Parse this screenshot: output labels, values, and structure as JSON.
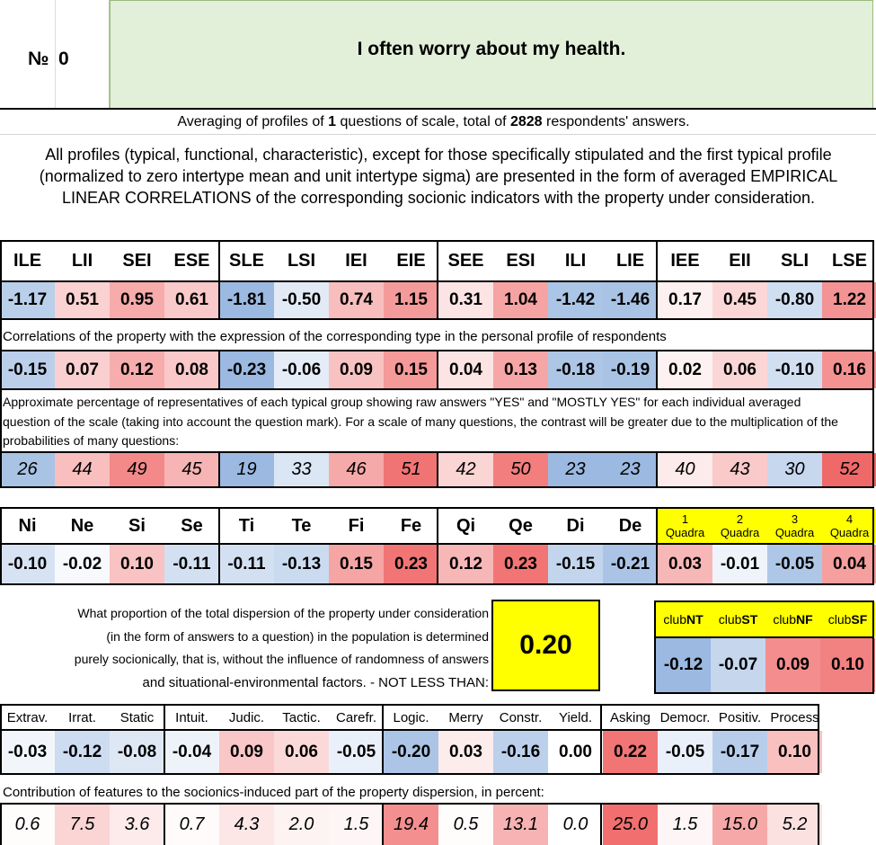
{
  "header": {
    "number_label": "№",
    "number_value": "0",
    "question": "I often worry about my health."
  },
  "summary": {
    "text_a": "Averaging of profiles of",
    "questions_count": "1",
    "text_b": "questions of scale, total of",
    "respondents": "2828",
    "text_c": "respondents' answers."
  },
  "description": "All profiles (typical, functional, characteristic), except for those specifically stipulated and the first typical profile (normalized to zero intertype mean and unit intertype sigma) are presented in the form of averaged EMPIRICAL LINEAR CORRELATIONS of the corresponding socionic indicators with the property under consideration.",
  "types": {
    "labels": [
      "ILE",
      "LII",
      "SEI",
      "ESE",
      "SLE",
      "LSI",
      "IEI",
      "EIE",
      "SEE",
      "ESI",
      "ILI",
      "LIE",
      "IEE",
      "EII",
      "SLI",
      "LSE"
    ],
    "normalized": [
      "-1.17",
      "0.51",
      "0.95",
      "0.61",
      "-1.81",
      "-0.50",
      "0.74",
      "1.15",
      "0.31",
      "1.04",
      "-1.42",
      "-1.46",
      "0.17",
      "0.45",
      "-0.80",
      "1.22"
    ],
    "correlations_caption": "Correlations of the property with the expression of the corresponding type in the personal profile of respondents",
    "correlations": [
      "-0.15",
      "0.07",
      "0.12",
      "0.08",
      "-0.23",
      "-0.06",
      "0.09",
      "0.15",
      "0.04",
      "0.13",
      "-0.18",
      "-0.19",
      "0.02",
      "0.06",
      "-0.10",
      "0.16"
    ],
    "percent_caption": "Approximate percentage of representatives of each typical group showing raw answers \"YES\" and \"MOSTLY YES\" for each individual averaged question of the scale (taking into account the question mark). For a scale of many questions, the contrast will be greater due to the multiplication of the probabilities of many questions:",
    "percents": [
      "26",
      "44",
      "49",
      "45",
      "19",
      "33",
      "46",
      "51",
      "42",
      "50",
      "23",
      "23",
      "40",
      "43",
      "30",
      "52"
    ]
  },
  "functions": {
    "labels": [
      "Ni",
      "Ne",
      "Si",
      "Se",
      "Ti",
      "Te",
      "Fi",
      "Fe",
      "Qi",
      "Qe",
      "Di",
      "De"
    ],
    "values": [
      "-0.10",
      "-0.02",
      "0.10",
      "-0.11",
      "-0.11",
      "-0.13",
      "0.15",
      "0.23",
      "0.12",
      "0.23",
      "-0.15",
      "-0.21"
    ]
  },
  "quadras": {
    "labels": [
      {
        "num": "1",
        "word": "Quadra"
      },
      {
        "num": "2",
        "word": "Quadra"
      },
      {
        "num": "3",
        "word": "Quadra"
      },
      {
        "num": "4",
        "word": "Quadra"
      }
    ],
    "values": [
      "0.03",
      "-0.01",
      "-0.05",
      "0.04"
    ]
  },
  "dispersion": {
    "line1": "What proportion of the total dispersion of the property under consideration",
    "line2": "(in the form of answers to a question) in the population is determined",
    "line3": "purely socionically, that is, without the influence of randomness of answers",
    "line4": "and situational-environmental factors. - NOT LESS THAN:",
    "value": "0.20"
  },
  "clubs": {
    "labels": [
      {
        "pre": "club",
        "suf": "NT"
      },
      {
        "pre": "club",
        "suf": "ST"
      },
      {
        "pre": "club",
        "suf": "NF"
      },
      {
        "pre": "club",
        "suf": "SF"
      }
    ],
    "values": [
      "-0.12",
      "-0.07",
      "0.09",
      "0.10"
    ]
  },
  "features": {
    "labels": [
      "Extrav.",
      "Irrat.",
      "Static",
      "Intuit.",
      "Judic.",
      "Tactic.",
      "Carefr.",
      "Logic.",
      "Merry",
      "Constr.",
      "Yield.",
      "Asking",
      "Democr.",
      "Positiv.",
      "Process"
    ],
    "values": [
      "-0.03",
      "-0.12",
      "-0.08",
      "-0.04",
      "0.09",
      "0.06",
      "-0.05",
      "-0.20",
      "0.03",
      "-0.16",
      "0.00",
      "0.22",
      "-0.05",
      "-0.17",
      "0.10"
    ],
    "contribution_caption": "Contribution of features to the socionics-induced part of the property dispersion, in percent:",
    "contributions": [
      "0.6",
      "7.5",
      "3.6",
      "0.7",
      "4.3",
      "2.0",
      "1.5",
      "19.4",
      "0.5",
      "13.1",
      "0.0",
      "25.0",
      "1.5",
      "15.0",
      "5.2"
    ]
  },
  "colors": {
    "header_green": "#e2efd9",
    "highlight_yellow": "#ffff00",
    "strong_red": "#f07070",
    "strong_blue": "#9ebbe0"
  }
}
